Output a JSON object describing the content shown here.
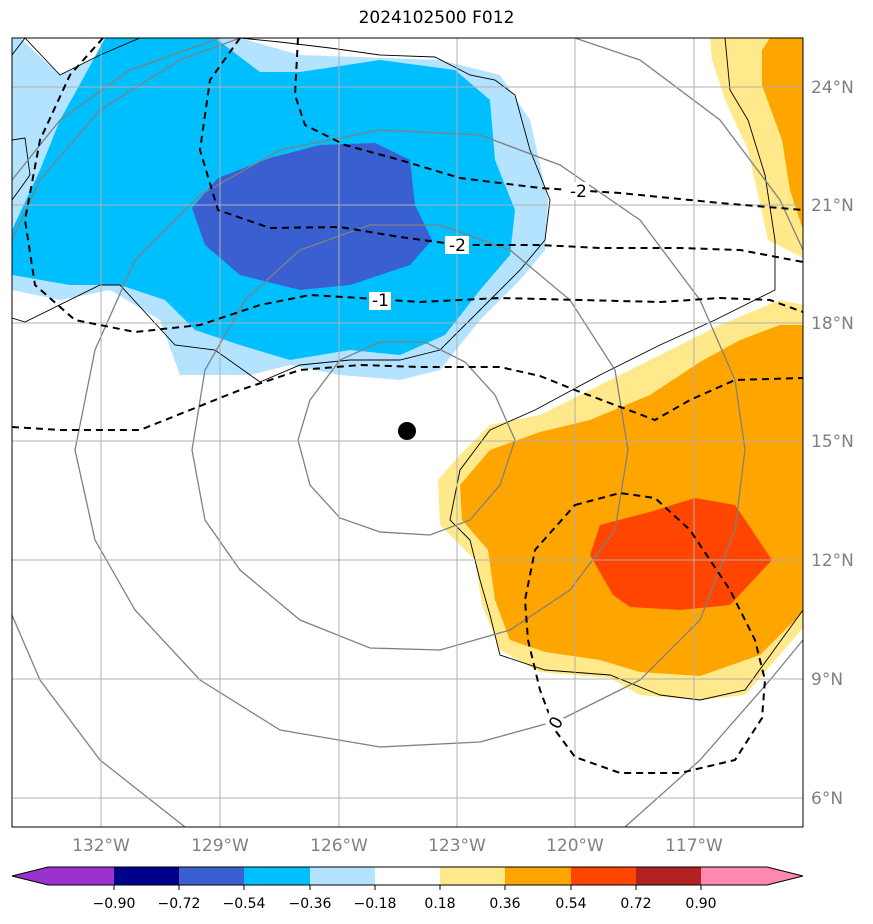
{
  "title": "2024102500 F012",
  "map": {
    "lon_ticks": [
      {
        "value": -132,
        "label": "132°W"
      },
      {
        "value": -129,
        "label": "129°W"
      },
      {
        "value": -126,
        "label": "126°W"
      },
      {
        "value": -123,
        "label": "123°W"
      },
      {
        "value": -120,
        "label": "120°W"
      },
      {
        "value": -117,
        "label": "117°W"
      }
    ],
    "lat_ticks": [
      {
        "value": 24,
        "label": "24°N"
      },
      {
        "value": 21,
        "label": "21°N"
      },
      {
        "value": 18,
        "label": "18°N"
      },
      {
        "value": 15,
        "label": "15°N"
      },
      {
        "value": 12,
        "label": "12°N"
      },
      {
        "value": 9,
        "label": "9°N"
      },
      {
        "value": 6,
        "label": "6°N"
      }
    ],
    "storm_center": {
      "lon": -124.3,
      "lat": 15.2
    },
    "contour_labels": [
      {
        "text": "-2",
        "lon": -119.8,
        "lat": 21.4
      },
      {
        "text": "-2",
        "lon": -123.0,
        "lat": 20.0
      },
      {
        "text": "-1",
        "lon": -125.0,
        "lat": 18.6
      },
      {
        "text": "0",
        "lon": -120.6,
        "lat": 7.9
      }
    ],
    "fill_colors": {
      "blue_light": "#b3e3ff",
      "blue_mid": "#00bfff",
      "blue_dark": "#3a5fd0",
      "yellow": "#ffe98a",
      "orange": "#ffa500",
      "red_orange": "#ff4500"
    }
  },
  "colorbar": {
    "ticks": [
      "−0.90",
      "−0.72",
      "−0.54",
      "−0.36",
      "−0.18",
      "0.18",
      "0.36",
      "0.54",
      "0.72",
      "0.90"
    ],
    "colors": [
      "#9932cc",
      "#00008b",
      "#3a5fd0",
      "#00bfff",
      "#b3e3ff",
      "#ffffff",
      "#ffe98a",
      "#ffa500",
      "#ff4500",
      "#b22222",
      "#ff88b0"
    ]
  }
}
